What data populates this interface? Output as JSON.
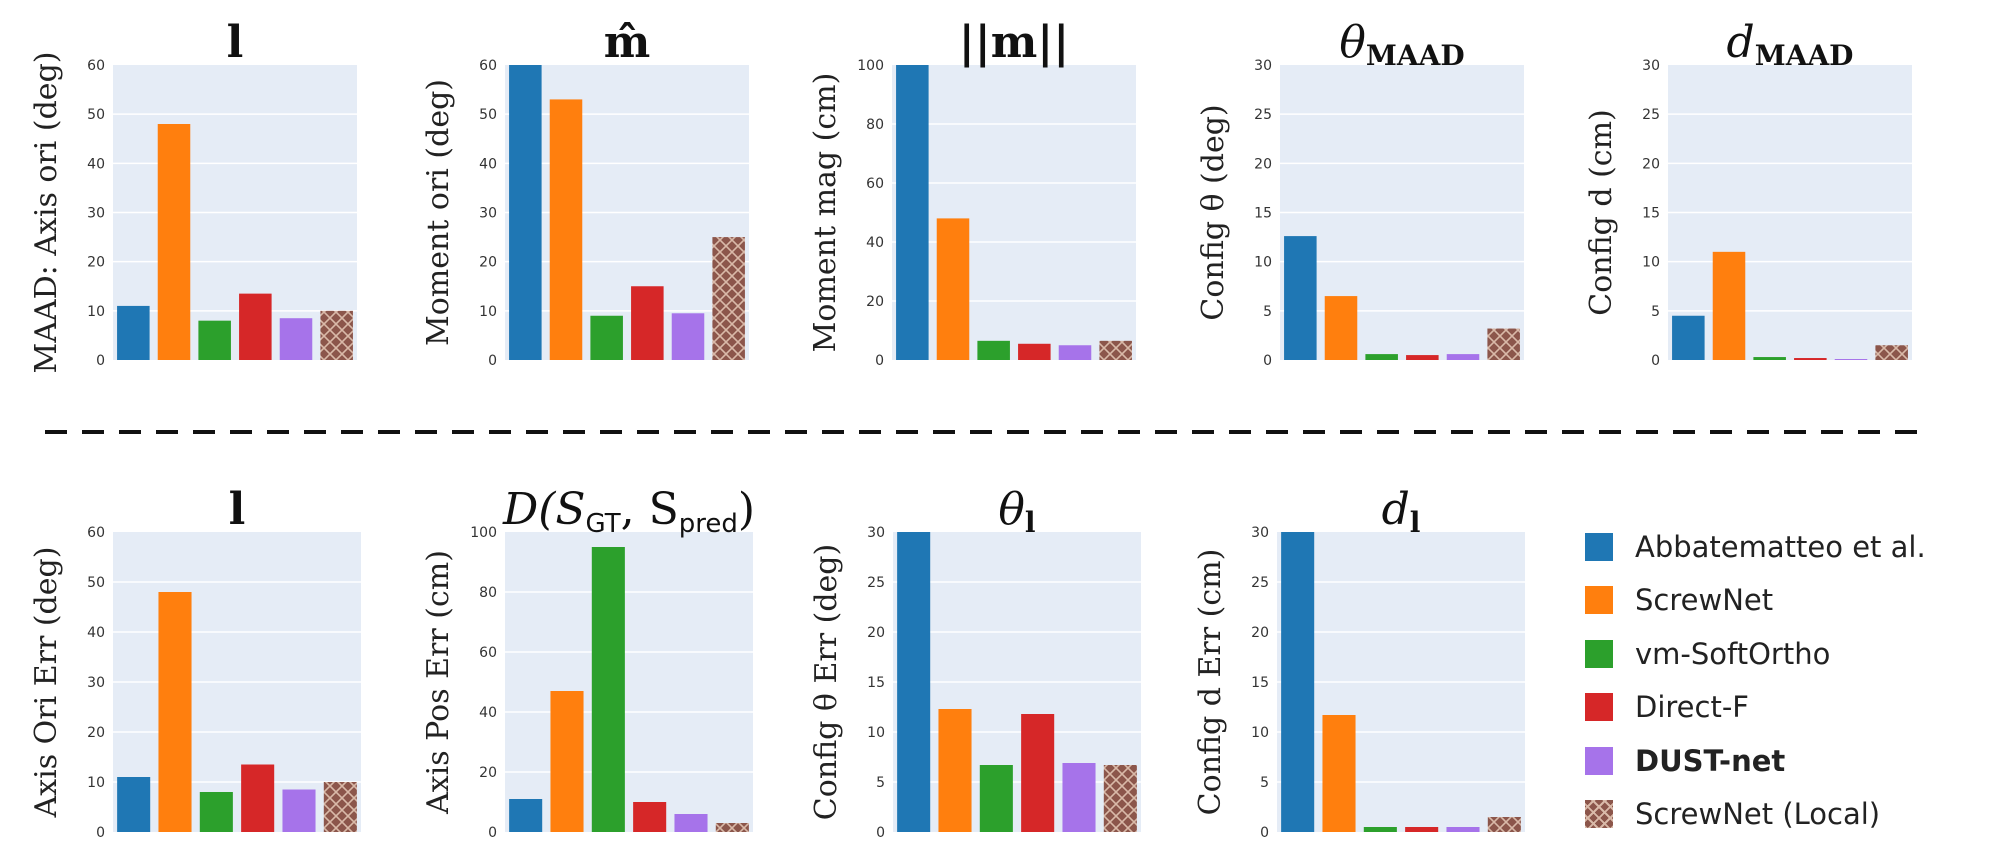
{
  "chart_data": [
    {
      "type": "bar",
      "row": "top",
      "title": "l",
      "title_style": "bold",
      "ylabel": "MAAD: Axis ori (deg)",
      "ylim": [
        0,
        60
      ],
      "ticks": [
        0,
        10,
        20,
        30,
        40,
        50,
        60
      ],
      "values": [
        11,
        48,
        8,
        13.5,
        8.5,
        10
      ]
    },
    {
      "type": "bar",
      "row": "top",
      "title": "m̂",
      "title_style": "bold",
      "ylabel": "Moment ori (deg)",
      "ylim": [
        0,
        60
      ],
      "ticks": [
        0,
        10,
        20,
        30,
        40,
        50,
        60
      ],
      "values": [
        60,
        53,
        9,
        15,
        9.5,
        25
      ]
    },
    {
      "type": "bar",
      "row": "top",
      "title": "||m||",
      "title_style": "bold",
      "ylabel": "Moment mag (cm)",
      "ylim": [
        0,
        100
      ],
      "ticks": [
        0,
        20,
        40,
        60,
        80,
        100
      ],
      "values": [
        100,
        48,
        6.5,
        5.5,
        5,
        6.5
      ]
    },
    {
      "type": "bar",
      "row": "top",
      "title": "θ",
      "title_sub": "MAAD",
      "title_style": "italic",
      "ylabel": "Config θ (deg)",
      "ylim": [
        0,
        30
      ],
      "ticks": [
        0,
        5,
        10,
        15,
        20,
        25,
        30
      ],
      "values": [
        12.6,
        6.5,
        0.6,
        0.5,
        0.6,
        3.2
      ]
    },
    {
      "type": "bar",
      "row": "top",
      "title": "d",
      "title_sub": "MAAD",
      "title_style": "italic",
      "ylabel": "Config d (cm)",
      "ylim": [
        0,
        30
      ],
      "ticks": [
        0,
        5,
        10,
        15,
        20,
        25,
        30
      ],
      "values": [
        4.5,
        11,
        0.3,
        0.2,
        0.1,
        1.5
      ]
    },
    {
      "type": "bar",
      "row": "bottom",
      "title": "l",
      "title_style": "bold",
      "ylabel": "Axis Ori Err (deg)",
      "ylim": [
        0,
        60
      ],
      "ticks": [
        0,
        10,
        20,
        30,
        40,
        50,
        60
      ],
      "values": [
        11,
        48,
        8,
        13.5,
        8.5,
        10
      ]
    },
    {
      "type": "bar",
      "row": "bottom",
      "title": "D(S",
      "title_sub": "GT",
      "title_mid": ", S",
      "title_sub2": "pred",
      "title_end": ")",
      "title_style": "math",
      "ylabel": "Axis Pos Err (cm)",
      "ylim": [
        0,
        100
      ],
      "ticks": [
        0,
        20,
        40,
        60,
        80,
        100
      ],
      "values": [
        11,
        47,
        95,
        10,
        6,
        3
      ]
    },
    {
      "type": "bar",
      "row": "bottom",
      "title": "θ",
      "title_sub": "l",
      "title_style": "italic",
      "ylabel": "Config θ Err (deg)",
      "ylim": [
        0,
        30
      ],
      "ticks": [
        0,
        5,
        10,
        15,
        20,
        25,
        30
      ],
      "values": [
        30,
        12.3,
        6.7,
        11.8,
        6.9,
        6.7
      ]
    },
    {
      "type": "bar",
      "row": "bottom",
      "title": "d",
      "title_sub": "l",
      "title_style": "italic",
      "ylabel": "Config d Err (cm)",
      "ylim": [
        0,
        30
      ],
      "ticks": [
        0,
        5,
        10,
        15,
        20,
        25,
        30
      ],
      "values": [
        30,
        11.7,
        0.5,
        0.5,
        0.5,
        1.5
      ]
    }
  ],
  "series": [
    {
      "name": "Abbatematteo et al.",
      "color": "#1f77b4",
      "pattern": "solid",
      "bold": false
    },
    {
      "name": "ScrewNet",
      "color": "#ff7f0e",
      "pattern": "solid",
      "bold": false
    },
    {
      "name": "vm-SoftOrtho",
      "color": "#2ca02c",
      "pattern": "solid",
      "bold": false
    },
    {
      "name": "Direct-F",
      "color": "#d62728",
      "pattern": "solid",
      "bold": false
    },
    {
      "name": "DUST-net",
      "color": "#a673ea",
      "pattern": "solid",
      "bold": true
    },
    {
      "name": "ScrewNet (Local)",
      "color": "#8c564b",
      "pattern": "crosshatch",
      "bold": false
    }
  ],
  "colors": {
    "plot_bg": "#e5ecf6",
    "grid": "#ffffff",
    "divider": "#111111"
  }
}
